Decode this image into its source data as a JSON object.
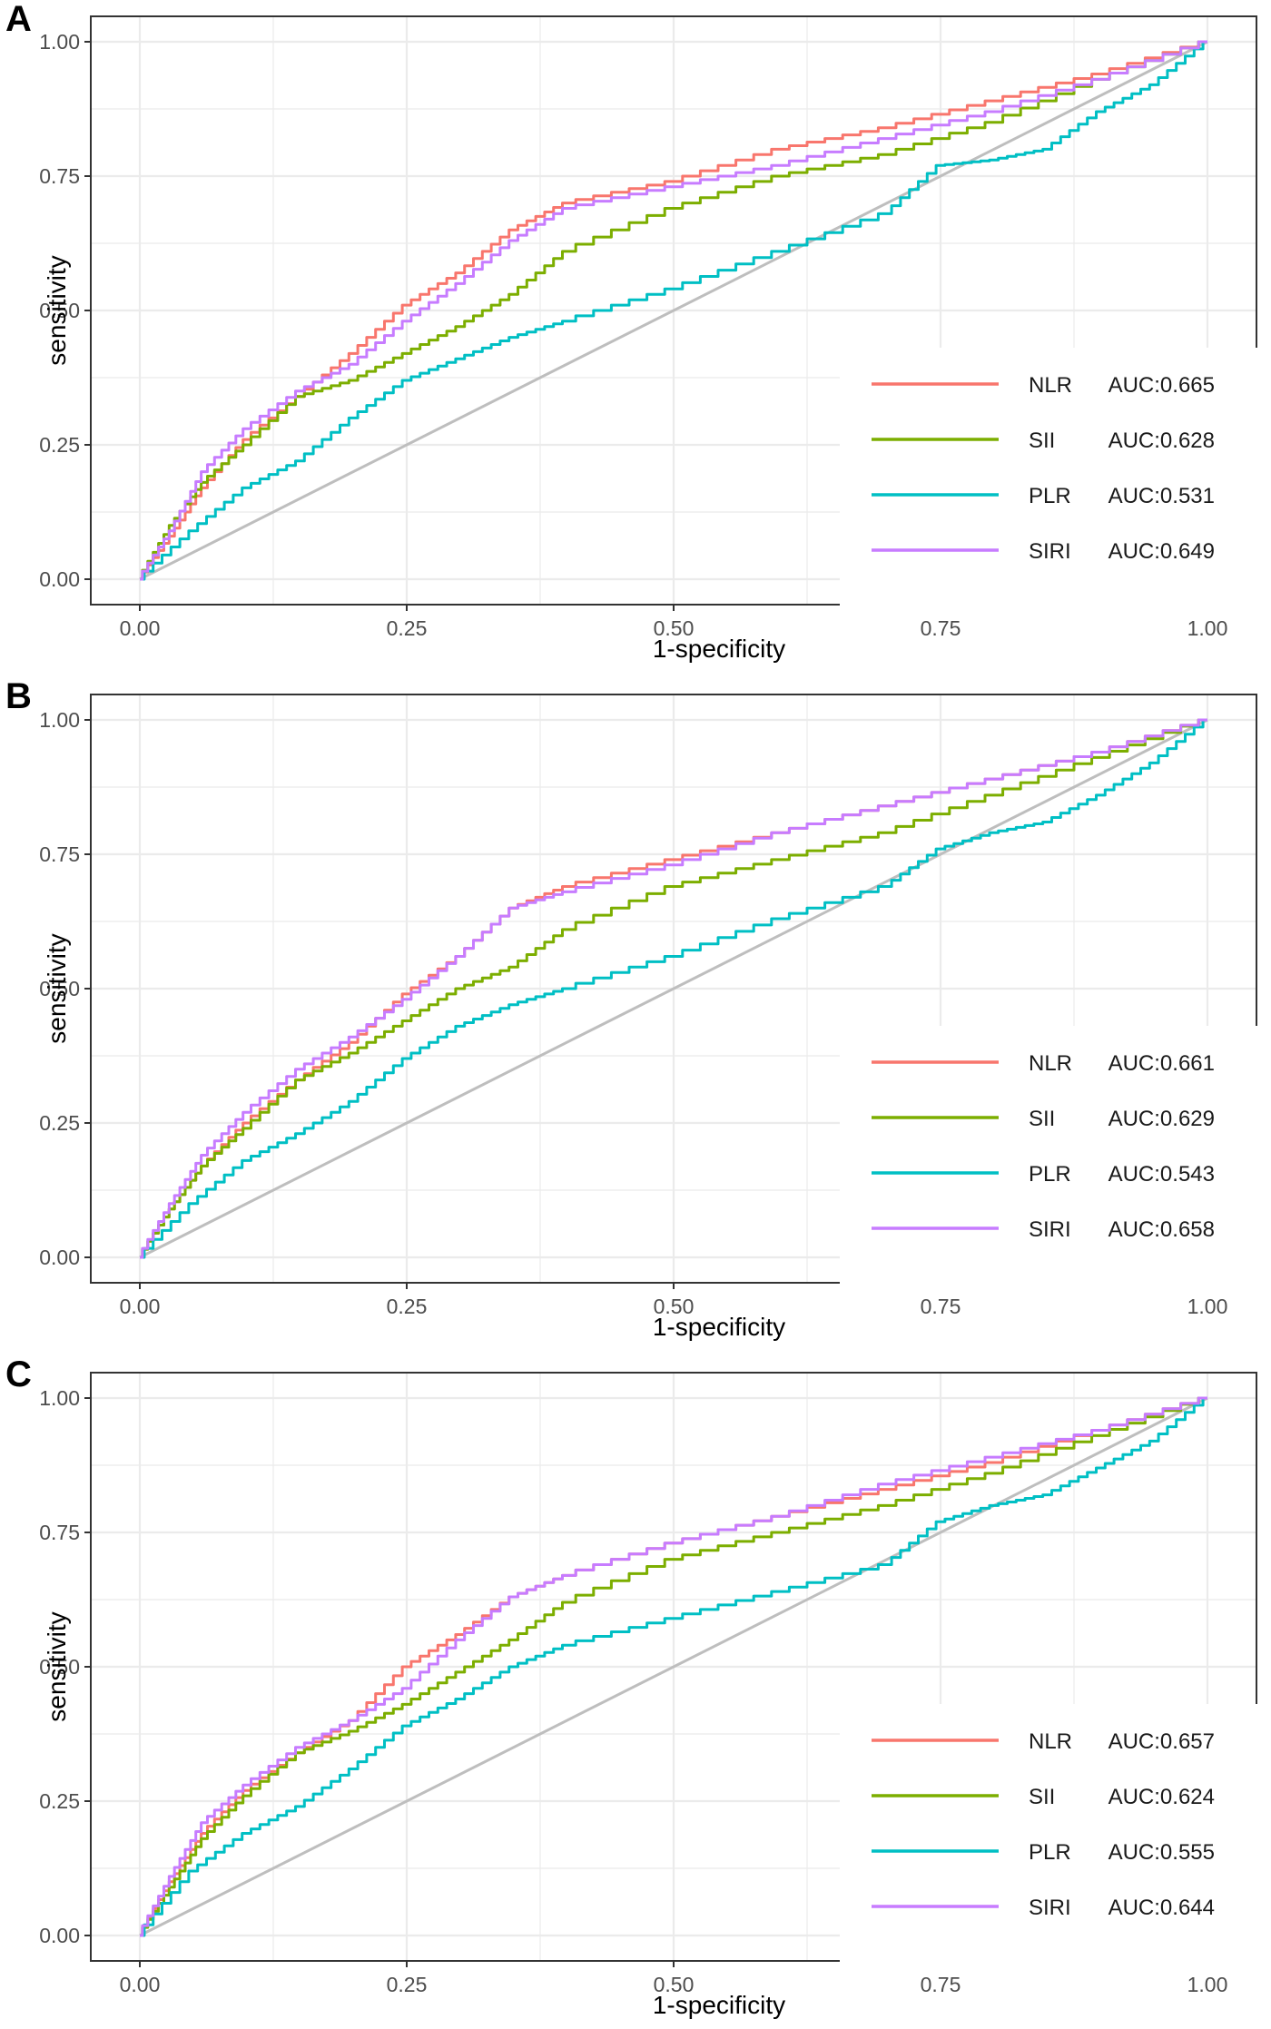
{
  "figure": {
    "panel_letters": [
      "A",
      "B",
      "C"
    ],
    "colors": {
      "NLR": "#F8766D",
      "SII": "#7CAE00",
      "PLR": "#00BFC4",
      "SIRI": "#C77CFF",
      "reference": "#BEBEBE",
      "grid": "#EBEBEB",
      "frame": "#333333"
    }
  },
  "chart_data": [
    {
      "type": "line",
      "panel": "A",
      "xlabel": "1-specificity",
      "ylabel": "sensitivity",
      "xlim": [
        0,
        1
      ],
      "ylim": [
        0,
        1
      ],
      "x_ticks": [
        "0.00",
        "0.25",
        "0.50",
        "0.75",
        "1.00"
      ],
      "y_ticks": [
        "0.00",
        "0.25",
        "0.50",
        "0.75",
        "1.00"
      ],
      "legend_position": "bottom-right",
      "series": [
        {
          "name": "NLR",
          "auc_label": "AUC:0.665",
          "color_key": "NLR",
          "points": [
            [
              0,
              0
            ],
            [
              0.03,
              0.08
            ],
            [
              0.06,
              0.17
            ],
            [
              0.1,
              0.26
            ],
            [
              0.15,
              0.34
            ],
            [
              0.2,
              0.42
            ],
            [
              0.25,
              0.51
            ],
            [
              0.3,
              0.57
            ],
            [
              0.35,
              0.65
            ],
            [
              0.4,
              0.7
            ],
            [
              0.5,
              0.74
            ],
            [
              0.6,
              0.8
            ],
            [
              0.7,
              0.84
            ],
            [
              0.8,
              0.89
            ],
            [
              0.9,
              0.94
            ],
            [
              1,
              1
            ]
          ]
        },
        {
          "name": "SII",
          "auc_label": "AUC:0.628",
          "color_key": "SII",
          "points": [
            [
              0,
              0
            ],
            [
              0.03,
              0.1
            ],
            [
              0.06,
              0.18
            ],
            [
              0.1,
              0.25
            ],
            [
              0.15,
              0.34
            ],
            [
              0.2,
              0.37
            ],
            [
              0.25,
              0.42
            ],
            [
              0.3,
              0.47
            ],
            [
              0.35,
              0.53
            ],
            [
              0.4,
              0.61
            ],
            [
              0.5,
              0.69
            ],
            [
              0.6,
              0.75
            ],
            [
              0.7,
              0.79
            ],
            [
              0.8,
              0.85
            ],
            [
              0.9,
              0.93
            ],
            [
              1,
              1
            ]
          ]
        },
        {
          "name": "PLR",
          "auc_label": "AUC:0.531",
          "color_key": "PLR",
          "points": [
            [
              0,
              0
            ],
            [
              0.05,
              0.09
            ],
            [
              0.1,
              0.17
            ],
            [
              0.15,
              0.22
            ],
            [
              0.2,
              0.3
            ],
            [
              0.25,
              0.37
            ],
            [
              0.3,
              0.41
            ],
            [
              0.35,
              0.45
            ],
            [
              0.4,
              0.48
            ],
            [
              0.5,
              0.54
            ],
            [
              0.6,
              0.61
            ],
            [
              0.7,
              0.68
            ],
            [
              0.75,
              0.77
            ],
            [
              0.8,
              0.78
            ],
            [
              0.85,
              0.8
            ],
            [
              0.9,
              0.87
            ],
            [
              0.95,
              0.92
            ],
            [
              1,
              1
            ]
          ]
        },
        {
          "name": "SIRI",
          "auc_label": "AUC:0.649",
          "color_key": "SIRI",
          "points": [
            [
              0,
              0
            ],
            [
              0.03,
              0.09
            ],
            [
              0.06,
              0.2
            ],
            [
              0.1,
              0.28
            ],
            [
              0.15,
              0.35
            ],
            [
              0.2,
              0.4
            ],
            [
              0.25,
              0.48
            ],
            [
              0.3,
              0.55
            ],
            [
              0.35,
              0.63
            ],
            [
              0.4,
              0.69
            ],
            [
              0.5,
              0.73
            ],
            [
              0.6,
              0.77
            ],
            [
              0.7,
              0.82
            ],
            [
              0.8,
              0.87
            ],
            [
              0.9,
              0.93
            ],
            [
              1,
              1
            ]
          ]
        }
      ]
    },
    {
      "type": "line",
      "panel": "B",
      "xlabel": "1-specificity",
      "ylabel": "sensitivity",
      "xlim": [
        0,
        1
      ],
      "ylim": [
        0,
        1
      ],
      "x_ticks": [
        "0.00",
        "0.25",
        "0.50",
        "0.75",
        "1.00"
      ],
      "y_ticks": [
        "0.00",
        "0.25",
        "0.50",
        "0.75",
        "1.00"
      ],
      "legend_position": "bottom-right",
      "series": [
        {
          "name": "NLR",
          "auc_label": "AUC:0.661",
          "color_key": "NLR",
          "points": [
            [
              0,
              0
            ],
            [
              0.03,
              0.09
            ],
            [
              0.06,
              0.17
            ],
            [
              0.1,
              0.25
            ],
            [
              0.15,
              0.33
            ],
            [
              0.2,
              0.4
            ],
            [
              0.25,
              0.49
            ],
            [
              0.3,
              0.56
            ],
            [
              0.35,
              0.65
            ],
            [
              0.4,
              0.69
            ],
            [
              0.5,
              0.74
            ],
            [
              0.6,
              0.79
            ],
            [
              0.7,
              0.84
            ],
            [
              0.8,
              0.89
            ],
            [
              0.9,
              0.94
            ],
            [
              1,
              1
            ]
          ]
        },
        {
          "name": "SII",
          "auc_label": "AUC:0.629",
          "color_key": "SII",
          "points": [
            [
              0,
              0
            ],
            [
              0.03,
              0.09
            ],
            [
              0.06,
              0.17
            ],
            [
              0.1,
              0.24
            ],
            [
              0.15,
              0.33
            ],
            [
              0.2,
              0.38
            ],
            [
              0.25,
              0.44
            ],
            [
              0.3,
              0.5
            ],
            [
              0.35,
              0.54
            ],
            [
              0.4,
              0.61
            ],
            [
              0.5,
              0.69
            ],
            [
              0.6,
              0.74
            ],
            [
              0.7,
              0.79
            ],
            [
              0.8,
              0.86
            ],
            [
              0.9,
              0.93
            ],
            [
              1,
              1
            ]
          ]
        },
        {
          "name": "PLR",
          "auc_label": "AUC:0.543",
          "color_key": "PLR",
          "points": [
            [
              0,
              0
            ],
            [
              0.05,
              0.1
            ],
            [
              0.1,
              0.18
            ],
            [
              0.15,
              0.23
            ],
            [
              0.2,
              0.29
            ],
            [
              0.25,
              0.37
            ],
            [
              0.3,
              0.43
            ],
            [
              0.35,
              0.47
            ],
            [
              0.4,
              0.5
            ],
            [
              0.5,
              0.56
            ],
            [
              0.6,
              0.63
            ],
            [
              0.7,
              0.69
            ],
            [
              0.75,
              0.76
            ],
            [
              0.8,
              0.79
            ],
            [
              0.85,
              0.81
            ],
            [
              0.9,
              0.86
            ],
            [
              0.95,
              0.92
            ],
            [
              1,
              1
            ]
          ]
        },
        {
          "name": "SIRI",
          "auc_label": "AUC:0.658",
          "color_key": "SIRI",
          "points": [
            [
              0,
              0
            ],
            [
              0.03,
              0.1
            ],
            [
              0.06,
              0.19
            ],
            [
              0.1,
              0.27
            ],
            [
              0.15,
              0.35
            ],
            [
              0.2,
              0.41
            ],
            [
              0.25,
              0.48
            ],
            [
              0.3,
              0.56
            ],
            [
              0.35,
              0.65
            ],
            [
              0.4,
              0.68
            ],
            [
              0.5,
              0.73
            ],
            [
              0.6,
              0.79
            ],
            [
              0.7,
              0.84
            ],
            [
              0.8,
              0.89
            ],
            [
              0.9,
              0.94
            ],
            [
              1,
              1
            ]
          ]
        }
      ]
    },
    {
      "type": "line",
      "panel": "C",
      "xlabel": "1-specificity",
      "ylabel": "sensitivity",
      "xlim": [
        0,
        1
      ],
      "ylim": [
        0,
        1
      ],
      "x_ticks": [
        "0.00",
        "0.25",
        "0.50",
        "0.75",
        "1.00"
      ],
      "y_ticks": [
        "0.00",
        "0.25",
        "0.50",
        "0.75",
        "1.00"
      ],
      "legend_position": "bottom-right",
      "series": [
        {
          "name": "NLR",
          "auc_label": "AUC:0.657",
          "color_key": "NLR",
          "points": [
            [
              0,
              0
            ],
            [
              0.03,
              0.1
            ],
            [
              0.06,
              0.19
            ],
            [
              0.1,
              0.27
            ],
            [
              0.15,
              0.34
            ],
            [
              0.2,
              0.4
            ],
            [
              0.25,
              0.5
            ],
            [
              0.3,
              0.56
            ],
            [
              0.35,
              0.63
            ],
            [
              0.4,
              0.67
            ],
            [
              0.5,
              0.73
            ],
            [
              0.6,
              0.78
            ],
            [
              0.7,
              0.83
            ],
            [
              0.8,
              0.88
            ],
            [
              0.9,
              0.94
            ],
            [
              1,
              1
            ]
          ]
        },
        {
          "name": "SII",
          "auc_label": "AUC:0.624",
          "color_key": "SII",
          "points": [
            [
              0,
              0
            ],
            [
              0.03,
              0.09
            ],
            [
              0.06,
              0.18
            ],
            [
              0.1,
              0.26
            ],
            [
              0.15,
              0.34
            ],
            [
              0.2,
              0.38
            ],
            [
              0.25,
              0.43
            ],
            [
              0.3,
              0.49
            ],
            [
              0.35,
              0.55
            ],
            [
              0.4,
              0.62
            ],
            [
              0.5,
              0.7
            ],
            [
              0.6,
              0.75
            ],
            [
              0.7,
              0.8
            ],
            [
              0.8,
              0.86
            ],
            [
              0.9,
              0.93
            ],
            [
              1,
              1
            ]
          ]
        },
        {
          "name": "PLR",
          "auc_label": "AUC:0.555",
          "color_key": "PLR",
          "points": [
            [
              0,
              0
            ],
            [
              0.05,
              0.12
            ],
            [
              0.1,
              0.19
            ],
            [
              0.15,
              0.24
            ],
            [
              0.2,
              0.31
            ],
            [
              0.25,
              0.39
            ],
            [
              0.3,
              0.44
            ],
            [
              0.35,
              0.5
            ],
            [
              0.4,
              0.54
            ],
            [
              0.5,
              0.59
            ],
            [
              0.6,
              0.64
            ],
            [
              0.7,
              0.69
            ],
            [
              0.75,
              0.77
            ],
            [
              0.8,
              0.8
            ],
            [
              0.85,
              0.82
            ],
            [
              0.9,
              0.87
            ],
            [
              0.95,
              0.92
            ],
            [
              1,
              1
            ]
          ]
        },
        {
          "name": "SIRI",
          "auc_label": "AUC:0.644",
          "color_key": "SIRI",
          "points": [
            [
              0,
              0
            ],
            [
              0.03,
              0.11
            ],
            [
              0.06,
              0.21
            ],
            [
              0.1,
              0.28
            ],
            [
              0.15,
              0.35
            ],
            [
              0.2,
              0.4
            ],
            [
              0.25,
              0.46
            ],
            [
              0.3,
              0.55
            ],
            [
              0.35,
              0.63
            ],
            [
              0.4,
              0.67
            ],
            [
              0.5,
              0.73
            ],
            [
              0.6,
              0.78
            ],
            [
              0.7,
              0.84
            ],
            [
              0.8,
              0.89
            ],
            [
              0.9,
              0.94
            ],
            [
              1,
              1
            ]
          ]
        }
      ]
    }
  ]
}
